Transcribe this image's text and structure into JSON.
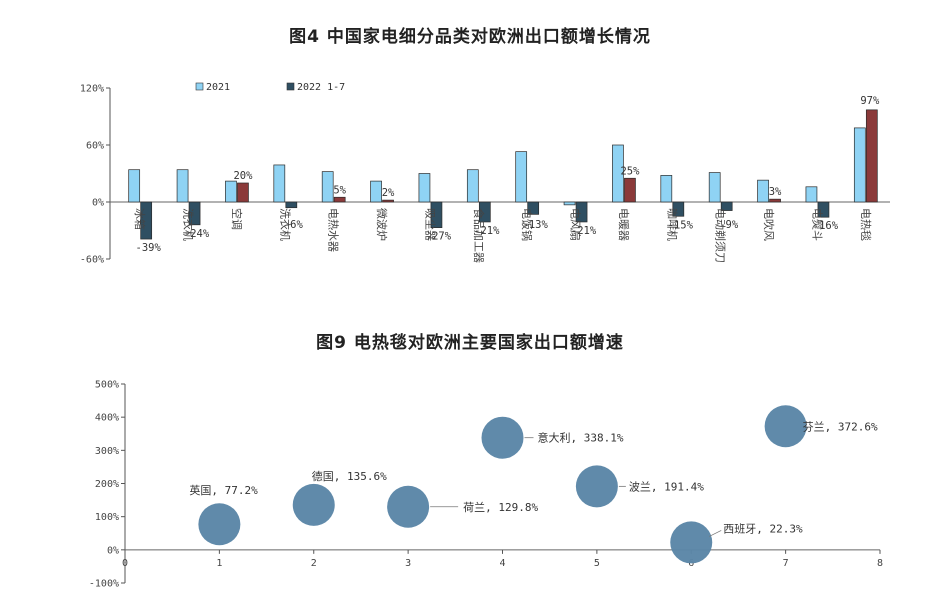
{
  "chart_data": [
    {
      "type": "bar",
      "title": "图4 中国家电细分品类对欧洲出口额增长情况",
      "ylim": [
        -60,
        120
      ],
      "yticks": [
        "120%",
        "60%",
        "0%",
        "-60%"
      ],
      "ytick_values": [
        120,
        60,
        0,
        -60
      ],
      "categories": [
        "冰箱",
        "洗衣机",
        "空调",
        "洗衣机",
        "电热水器",
        "微波炉",
        "吸尘器",
        "食品加工器",
        "电饭锅",
        "电风扇",
        "电暖器",
        "咖啡机",
        "电动剃须刀",
        "电吹风",
        "电熨斗",
        "电热毯"
      ],
      "series": [
        {
          "name": "2021",
          "color": "#8fd3f4",
          "values": [
            34,
            34,
            22,
            39,
            32,
            22,
            30,
            34,
            53,
            -3,
            60,
            28,
            31,
            23,
            16,
            78
          ]
        },
        {
          "name": "2022 1-7",
          "color": "#2f4f62",
          "values": [
            -39,
            -24,
            20,
            -6,
            5,
            2,
            -27,
            -21,
            -13,
            -21,
            25,
            -15,
            -9,
            3,
            -16,
            97
          ]
        }
      ],
      "highlight_color": "#8b3a3a",
      "data_labels": [
        "-39%",
        "-24%",
        "20%",
        "-6%",
        "5%",
        "2%",
        "-27%",
        "-21%",
        "-13%",
        "-21%",
        "25%",
        "-15%",
        "-9%",
        "3%",
        "-16%",
        "97%"
      ]
    },
    {
      "type": "scatter",
      "title": "图9 电热毯对欧洲主要国家出口额增速",
      "xlim": [
        0,
        8
      ],
      "ylim": [
        -100,
        500
      ],
      "xticks": [
        "0",
        "1",
        "2",
        "3",
        "4",
        "5",
        "6",
        "7",
        "8"
      ],
      "yticks": [
        "500%",
        "400%",
        "300%",
        "200%",
        "100%",
        "0%",
        "-100%"
      ],
      "ytick_values": [
        500,
        400,
        300,
        200,
        100,
        0,
        -100
      ],
      "bubble_color": "#5b86a7",
      "points": [
        {
          "x": 1,
          "y": 77.2,
          "label": "英国, 77.2%"
        },
        {
          "x": 2,
          "y": 135.6,
          "label": "德国, 135.6%"
        },
        {
          "x": 3,
          "y": 129.8,
          "label": "荷兰, 129.8%"
        },
        {
          "x": 4,
          "y": 338.1,
          "label": "意大利, 338.1%"
        },
        {
          "x": 5,
          "y": 191.4,
          "label": "波兰, 191.4%"
        },
        {
          "x": 6,
          "y": 22.3,
          "label": "西班牙, 22.3%"
        },
        {
          "x": 7,
          "y": 372.6,
          "label": "芬兰, 372.6%"
        }
      ]
    }
  ]
}
